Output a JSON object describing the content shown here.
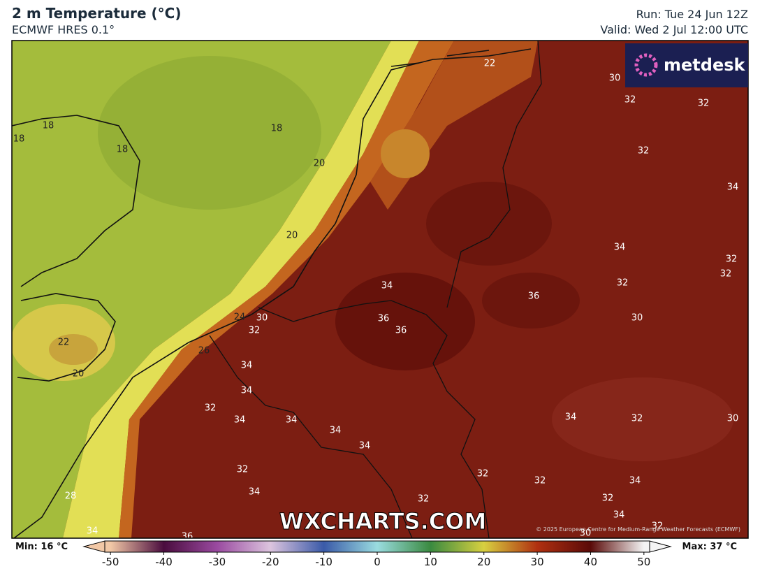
{
  "header": {
    "title": "2 m Temperature (°C)",
    "subtitle": "ECMWF HRES 0.1°",
    "run": "Run: Tue 24 Jun 12Z",
    "valid": "Valid: Wed 2 Jul 12:00 UTC"
  },
  "logo": "metdesk",
  "watermark": "WXCHARTS.COM",
  "copyright": "© 2025 European Centre for Medium-Range Weather Forecasts (ECMWF)",
  "map": {
    "contour_labels": [
      18,
      18,
      18,
      18,
      20,
      20,
      22,
      30,
      32,
      32,
      32,
      34,
      34,
      32,
      32,
      32,
      34,
      36,
      36,
      36,
      30,
      24,
      30,
      32,
      22,
      26,
      20,
      34,
      34,
      32,
      34,
      34,
      34,
      34,
      32,
      30,
      34,
      32,
      32,
      32,
      34,
      28,
      34,
      32,
      32,
      34,
      32,
      34,
      36,
      30
    ]
  },
  "colorbar": {
    "min_label": "Min: 16 °C",
    "max_label": "Max: 37 °C",
    "range": [
      -55,
      55
    ],
    "ticks": [
      -50,
      -40,
      -30,
      -20,
      -10,
      0,
      10,
      20,
      30,
      40,
      50
    ],
    "tick_colors": [
      "#f2c8a6",
      "#4a0c3e",
      "#9a4aa0",
      "#dcc4de",
      "#3a5aa8",
      "#9adce0",
      "#3a8a40",
      "#d8d040",
      "#b03010",
      "#5a0a08",
      "#f4f4f4"
    ]
  }
}
